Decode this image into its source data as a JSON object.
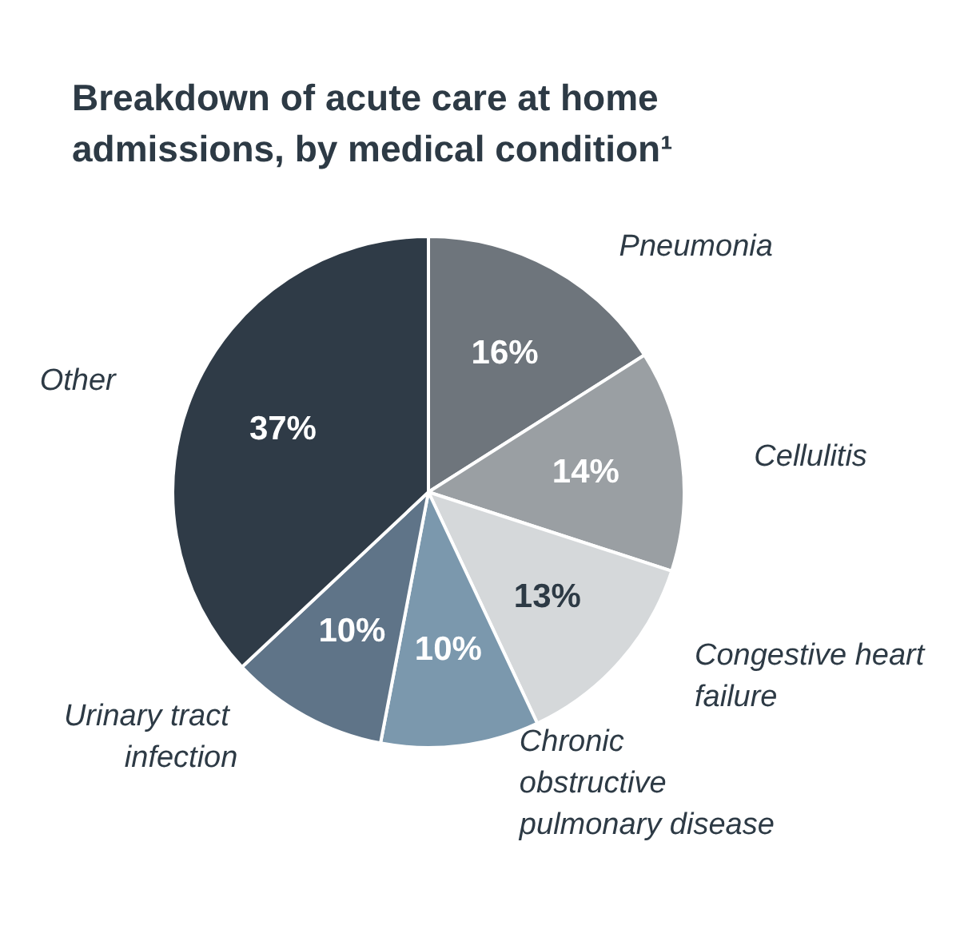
{
  "chart_data": {
    "type": "pie",
    "title": "Breakdown of acute care at home admissions, by medical condition¹",
    "categories": [
      "Pneumonia",
      "Cellulitis",
      "Congestive heart failure",
      "Chronic obstructive pulmonary disease",
      "Urinary tract infection",
      "Other"
    ],
    "values": [
      16,
      14,
      13,
      10,
      10,
      37
    ],
    "value_labels": [
      "16%",
      "14%",
      "13%",
      "10%",
      "10%",
      "37%"
    ],
    "colors": [
      "#6e757c",
      "#9a9fa3",
      "#d5d8da",
      "#7b98ad",
      "#5f7488",
      "#2f3b47"
    ],
    "legend": false
  }
}
